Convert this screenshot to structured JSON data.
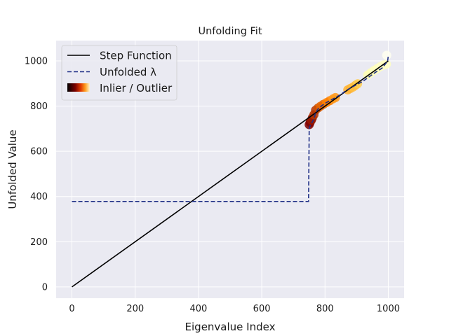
{
  "chart_data": {
    "type": "line",
    "title": "Unfolding Fit",
    "xlabel": "Eigenvalue Index",
    "ylabel": "Unfolded Value",
    "xlim": [
      -50,
      1050
    ],
    "ylim": [
      -50,
      1090
    ],
    "xticks": [
      0,
      200,
      400,
      600,
      800,
      1000
    ],
    "xtick_labels": [
      "0",
      "200",
      "400",
      "600",
      "800",
      "1000"
    ],
    "yticks": [
      0,
      200,
      400,
      600,
      800,
      1000
    ],
    "ytick_labels": [
      "0",
      "200",
      "400",
      "600",
      "800",
      "1000"
    ],
    "grid": true,
    "legend_position": "upper-left",
    "colors": {
      "background": "#eaeaf2",
      "grid": "#ffffff",
      "step": "#000000",
      "unfolded": "#1f2f86"
    },
    "series": [
      {
        "name": "Step Function",
        "style": "solid",
        "x": [
          0,
          1000
        ],
        "y": [
          0,
          1000
        ]
      },
      {
        "name": "Unfolded λ",
        "style": "dashed",
        "x": [
          0,
          748,
          750,
          752,
          755,
          760,
          765,
          770,
          780,
          800,
          820,
          835,
          850,
          870,
          885,
          900,
          920,
          940,
          960,
          980,
          990,
          998,
          1000
        ],
        "y": [
          378,
          378,
          700,
          710,
          720,
          730,
          745,
          770,
          792,
          812,
          828,
          840,
          852,
          872,
          884,
          895,
          910,
          930,
          950,
          968,
          985,
          1000,
          1022
        ]
      },
      {
        "name": "Inlier / Outlier",
        "type": "scatter",
        "colormap": "afmhot",
        "points": [
          {
            "x": 750,
            "y": 718,
            "c": 0.25
          },
          {
            "x": 753,
            "y": 728,
            "c": 0.25
          },
          {
            "x": 757,
            "y": 738,
            "c": 0.3
          },
          {
            "x": 760,
            "y": 748,
            "c": 0.3
          },
          {
            "x": 765,
            "y": 762,
            "c": 0.35
          },
          {
            "x": 770,
            "y": 782,
            "c": 0.35
          },
          {
            "x": 778,
            "y": 792,
            "c": 0.4
          },
          {
            "x": 786,
            "y": 800,
            "c": 0.45
          },
          {
            "x": 795,
            "y": 808,
            "c": 0.45
          },
          {
            "x": 805,
            "y": 816,
            "c": 0.5
          },
          {
            "x": 815,
            "y": 824,
            "c": 0.5
          },
          {
            "x": 825,
            "y": 832,
            "c": 0.55
          },
          {
            "x": 833,
            "y": 838,
            "c": 0.55
          },
          {
            "x": 872,
            "y": 872,
            "c": 0.6
          },
          {
            "x": 880,
            "y": 878,
            "c": 0.6
          },
          {
            "x": 888,
            "y": 884,
            "c": 0.62
          },
          {
            "x": 896,
            "y": 892,
            "c": 0.62
          },
          {
            "x": 903,
            "y": 899,
            "c": 0.65
          },
          {
            "x": 935,
            "y": 938,
            "c": 0.85
          },
          {
            "x": 945,
            "y": 948,
            "c": 0.85
          },
          {
            "x": 955,
            "y": 958,
            "c": 0.87
          },
          {
            "x": 965,
            "y": 966,
            "c": 0.87
          },
          {
            "x": 975,
            "y": 975,
            "c": 0.88
          },
          {
            "x": 985,
            "y": 982,
            "c": 0.88
          },
          {
            "x": 994,
            "y": 986,
            "c": 0.88
          },
          {
            "x": 995,
            "y": 1025,
            "c": 0.97
          }
        ]
      }
    ]
  }
}
